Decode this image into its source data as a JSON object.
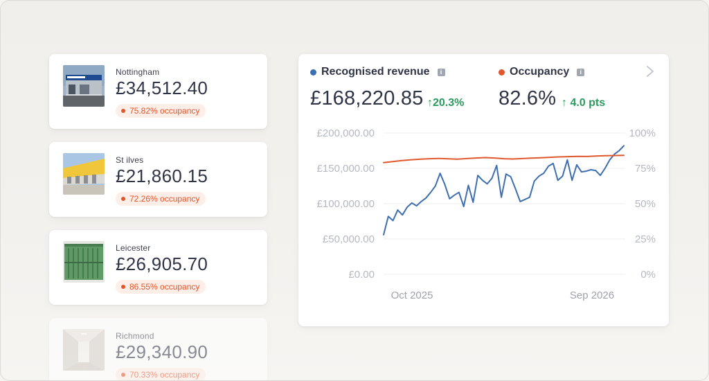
{
  "sites": [
    {
      "name": "Nottingham",
      "revenue": "£34,512.40",
      "occupancy": "75.82% occupancy",
      "faded": false
    },
    {
      "name": "St ilves",
      "revenue": "£21,860.15",
      "occupancy": "72.26% occupancy",
      "faded": false
    },
    {
      "name": "Leicester",
      "revenue": "£26,905.70",
      "occupancy": "86.55% occupancy",
      "faded": false
    },
    {
      "name": "Richmond",
      "revenue": "£29,340.90",
      "occupancy": "70.33% occupancy",
      "faded": true
    }
  ],
  "summary": {
    "revenue": {
      "label": "Recognised revenue",
      "value": "£168,220.85",
      "change": "20.3%",
      "icon": "info-icon"
    },
    "occupancy": {
      "label": "Occupancy",
      "value": "82.6%",
      "change": "4.0 pts",
      "icon": "info-icon"
    }
  },
  "colors": {
    "revenue": "#3d6eb0",
    "occupancy": "#e0572d",
    "positive": "#2a9a5c"
  },
  "chart_data": {
    "type": "line",
    "x_tick_labels": [
      "Oct 2025",
      "Sep 2026"
    ],
    "left_axis": {
      "ticks": [
        "£200,000.00",
        "£150,000.00",
        "£100,000.00",
        "£50,000.00",
        "£0.00"
      ],
      "ylim": [
        0,
        200000
      ]
    },
    "right_axis": {
      "ticks": [
        "100%",
        "75%",
        "50%",
        "25%",
        "0%"
      ],
      "ylim": [
        0,
        100
      ]
    },
    "grid": true,
    "series": [
      {
        "name": "Recognised revenue",
        "axis": "left",
        "values": [
          56000,
          82000,
          76000,
          91000,
          84000,
          95000,
          101000,
          97000,
          103000,
          108000,
          116000,
          125000,
          143000,
          127000,
          107000,
          112000,
          116000,
          96000,
          126000,
          102000,
          140000,
          133000,
          128000,
          136000,
          154000,
          109000,
          142000,
          138000,
          121000,
          103000,
          106000,
          109000,
          132000,
          139000,
          143000,
          153000,
          157000,
          133000,
          139000,
          162000,
          133000,
          155000,
          145000,
          146000,
          148000,
          147000,
          140000,
          150000,
          162000,
          170000,
          175000,
          182000
        ]
      },
      {
        "name": "Occupancy",
        "axis": "right",
        "values": [
          79.0,
          79.8,
          80.5,
          81.1,
          81.5,
          81.8,
          82.0,
          81.7,
          81.5,
          81.9,
          82.3,
          82.6,
          82.3,
          81.8,
          81.6,
          81.9,
          82.2,
          82.5,
          82.8,
          83.1,
          83.3,
          83.5,
          83.4,
          83.7,
          83.9,
          84.0,
          84.2
        ]
      }
    ]
  }
}
